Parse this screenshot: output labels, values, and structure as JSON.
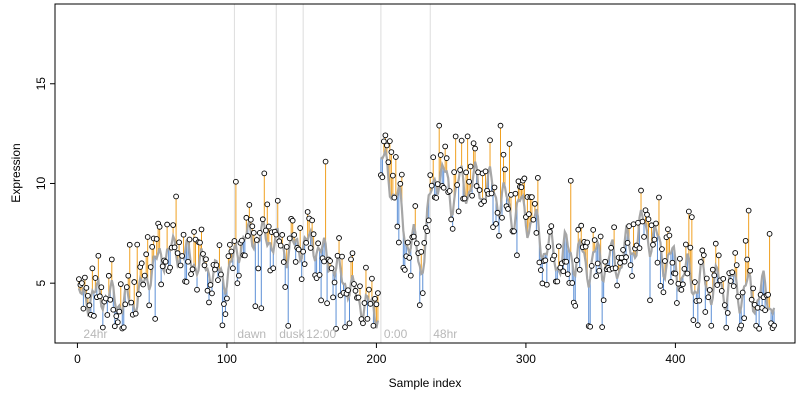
{
  "chart_data": {
    "type": "scatter",
    "title": "",
    "xlabel": "Sample index",
    "ylabel": "Expression",
    "xlim": [
      -15,
      480
    ],
    "ylim": [
      2.0,
      19.0
    ],
    "x_ticks": [
      0,
      100,
      200,
      300,
      400
    ],
    "y_ticks": [
      5,
      10,
      15
    ],
    "grid": false,
    "legend": "none",
    "colors": {
      "point_edge": "#000000",
      "point_fill": "#ffffff",
      "fit_line": "#a6a6a6",
      "residual_positive": "#f0a020",
      "residual_negative": "#5b8fd6",
      "marker_line": "#dcdcdc",
      "annotation_text": "#b8b8b8"
    },
    "annotations": [
      {
        "x": 2,
        "label": "24hr",
        "line": false
      },
      {
        "x": 105,
        "label": "dawn",
        "line": true
      },
      {
        "x": 133,
        "label": "dusk",
        "line": true
      },
      {
        "x": 151,
        "label": "12:00",
        "line": true
      },
      {
        "x": 203,
        "label": "0:00",
        "line": true
      },
      {
        "x": 236,
        "label": "48hr",
        "line": true
      }
    ],
    "segments": [
      {
        "x_start": 1,
        "x_end": 201,
        "base": [
          [
            1,
            4.2
          ],
          [
            10,
            4.4
          ],
          [
            20,
            4.4
          ],
          [
            30,
            4.0
          ],
          [
            40,
            4.2
          ],
          [
            50,
            5.8
          ],
          [
            60,
            6.6
          ],
          [
            70,
            6.6
          ],
          [
            80,
            6.0
          ],
          [
            90,
            5.6
          ],
          [
            100,
            5.3
          ],
          [
            110,
            7.2
          ],
          [
            120,
            7.4
          ],
          [
            130,
            7.2
          ],
          [
            140,
            6.6
          ],
          [
            150,
            7.0
          ],
          [
            160,
            6.9
          ],
          [
            170,
            6.0
          ],
          [
            180,
            5.0
          ],
          [
            190,
            4.0
          ],
          [
            201,
            3.6
          ]
        ]
      },
      {
        "x_start": 203,
        "x_end": 466,
        "base": [
          [
            203,
            11.0
          ],
          [
            210,
            10.2
          ],
          [
            220,
            7.5
          ],
          [
            230,
            6.0
          ],
          [
            240,
            10.8
          ],
          [
            250,
            9.5
          ],
          [
            260,
            10.0
          ],
          [
            270,
            9.8
          ],
          [
            280,
            9.6
          ],
          [
            290,
            8.6
          ],
          [
            300,
            8.6
          ],
          [
            310,
            7.2
          ],
          [
            320,
            6.2
          ],
          [
            330,
            6.6
          ],
          [
            340,
            6.0
          ],
          [
            350,
            6.2
          ],
          [
            360,
            6.0
          ],
          [
            370,
            6.8
          ],
          [
            380,
            7.9
          ],
          [
            390,
            6.6
          ],
          [
            400,
            5.8
          ],
          [
            410,
            5.2
          ],
          [
            420,
            5.0
          ],
          [
            430,
            4.8
          ],
          [
            440,
            4.8
          ],
          [
            450,
            4.5
          ],
          [
            460,
            4.4
          ],
          [
            466,
            4.2
          ]
        ]
      }
    ],
    "points": {
      "count": 464,
      "note": ""
    }
  }
}
